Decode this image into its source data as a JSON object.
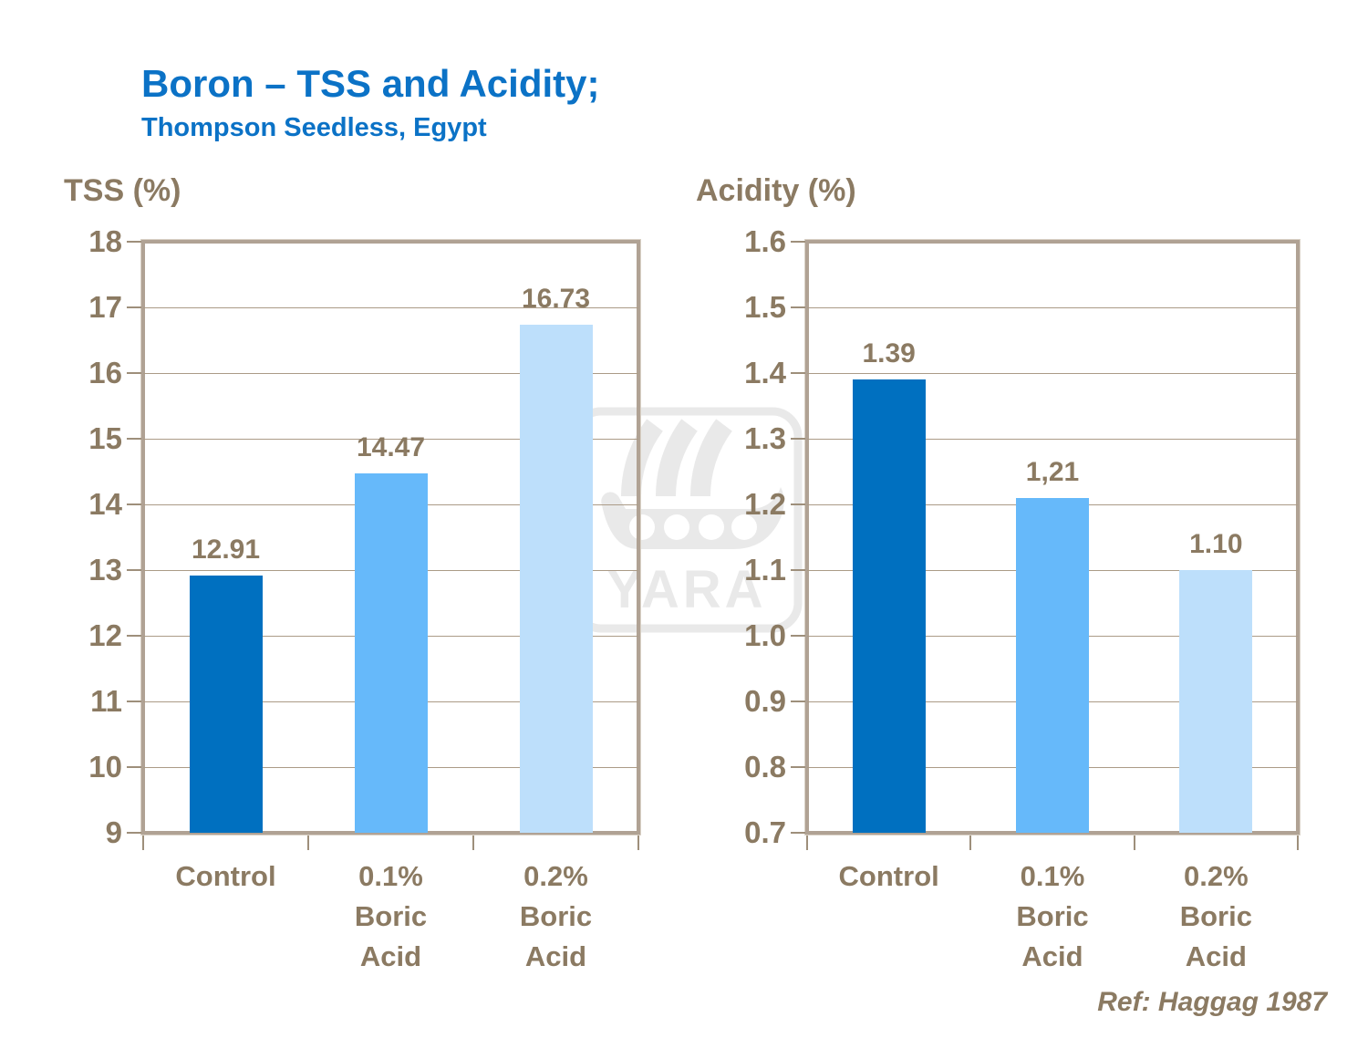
{
  "page": {
    "title": "Boron – TSS and Acidity;",
    "subtitle": "Thompson Seedless, Egypt",
    "reference": "Ref: Haggag 1987"
  },
  "colors": {
    "title_blue": "#0b72c6",
    "label_brown": "#8b7a62",
    "frame": "#b0a294",
    "gridline": "#ab9b87",
    "bar_dark_blue": "#0070C0",
    "bar_medium_blue": "#66B9FA",
    "bar_light_blue": "#BDDFFB",
    "watermark_gray": "#e9e9e9"
  },
  "watermark": {
    "brand": "YARA"
  },
  "chart_data": [
    {
      "type": "bar",
      "title": "TSS (%)",
      "categories": [
        "Control",
        "0.1% Boric Acid",
        "0.2% Boric Acid"
      ],
      "category_labels": [
        "Control",
        "0.1%\nBoric\nAcid",
        "0.2%\nBoric\nAcid"
      ],
      "values": [
        12.91,
        14.47,
        16.73
      ],
      "value_labels": [
        "12.91",
        "14.47",
        "16.73"
      ],
      "bar_colors": [
        "#0070C0",
        "#66B9FA",
        "#BDDFFB"
      ],
      "xlabel": "",
      "ylabel": "TSS (%)",
      "ylim": [
        9,
        18
      ],
      "ytick_step": 1,
      "ytick_labels": [
        "18",
        "17",
        "16",
        "15",
        "14",
        "13",
        "12",
        "11",
        "10",
        "9"
      ],
      "grid": true,
      "legend": "none"
    },
    {
      "type": "bar",
      "title": "Acidity (%)",
      "categories": [
        "Control",
        "0.1% Boric Acid",
        "0.2% Boric Acid"
      ],
      "category_labels": [
        "Control",
        "0.1%\nBoric\nAcid",
        "0.2%\nBoric\nAcid"
      ],
      "values": [
        1.39,
        1.21,
        1.1
      ],
      "value_labels": [
        "1.39",
        "1,21",
        "1.10"
      ],
      "bar_colors": [
        "#0070C0",
        "#66B9FA",
        "#BDDFFB"
      ],
      "xlabel": "",
      "ylabel": "Acidity (%)",
      "ylim": [
        0.7,
        1.6
      ],
      "ytick_step": 0.1,
      "ytick_labels": [
        "1.6",
        "1.5",
        "1.4",
        "1.3",
        "1.2",
        "1.1",
        "1.0",
        "0.9",
        "0.8",
        "0.7"
      ],
      "grid": true,
      "legend": "none"
    }
  ]
}
